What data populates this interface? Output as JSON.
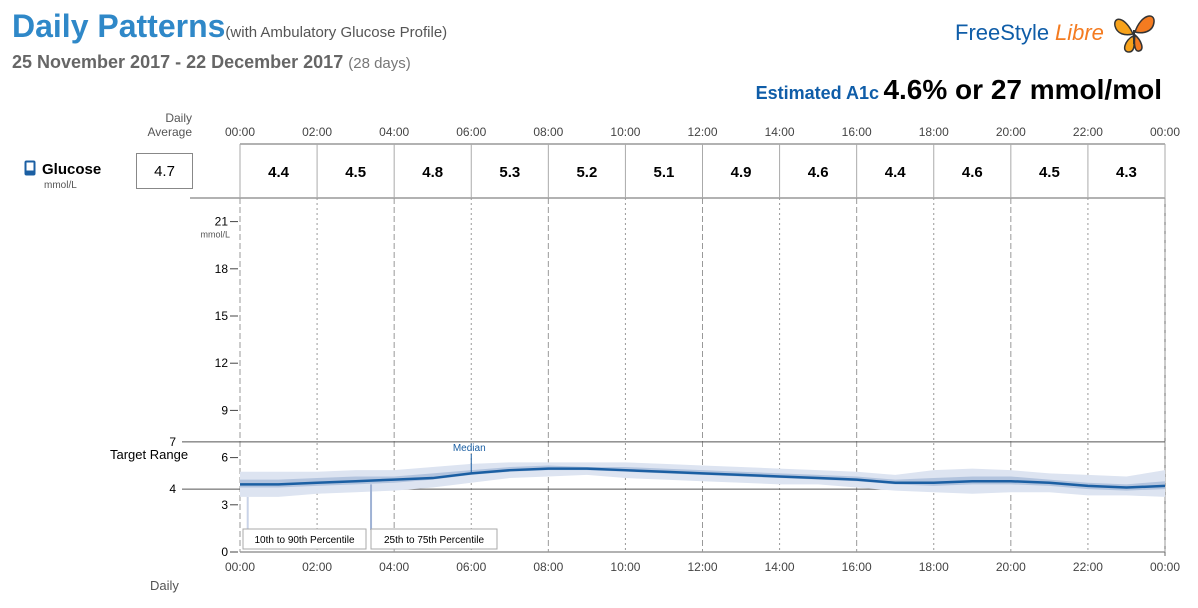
{
  "header": {
    "title": "Daily Patterns",
    "title_suffix": "(with Ambulatory Glucose Profile)",
    "date_range": "25 November 2017 - 22 December 2017",
    "day_count": "(28 days)",
    "logo_free": "FreeStyle",
    "logo_libre": "Libre",
    "a1c_label": "Estimated A1c",
    "a1c_value": "4.6% or 27 mmol/mol"
  },
  "summary": {
    "daily_average_label": "Daily Average",
    "glucose_label": "Glucose",
    "glucose_unit": "mmol/L",
    "daily_average_value": "4.7",
    "bottom_label": "Daily"
  },
  "target_range_label": "Target Range",
  "legend": {
    "median": "Median",
    "p10_90": "10th to 90th Percentile",
    "p25_75": "25th to 75th Percentile"
  },
  "colors": {
    "title": "#2f88c8",
    "a1c_label": "#0f5da8",
    "median_line": "#1b5fa3",
    "band_10_90": "#dde4f1",
    "band_25_75": "#b3c4de",
    "grid": "#999999"
  },
  "chart_data": {
    "type": "line",
    "time_ticks": [
      "00:00",
      "02:00",
      "04:00",
      "06:00",
      "08:00",
      "10:00",
      "12:00",
      "14:00",
      "16:00",
      "18:00",
      "20:00",
      "22:00",
      "00:00"
    ],
    "period_values": [
      "4.4",
      "4.5",
      "4.8",
      "5.3",
      "5.2",
      "5.1",
      "4.9",
      "4.6",
      "4.4",
      "4.6",
      "4.5",
      "4.3"
    ],
    "y_unit": "mmol/L",
    "y_ticks": [
      0,
      3,
      6,
      9,
      12,
      15,
      18,
      21
    ],
    "ylim": [
      0,
      22.5
    ],
    "target_range": [
      4,
      7
    ],
    "x_hours": [
      0,
      1,
      2,
      3,
      4,
      5,
      6,
      7,
      8,
      9,
      10,
      11,
      12,
      13,
      14,
      15,
      16,
      17,
      18,
      19,
      20,
      21,
      22,
      23,
      24
    ],
    "series": [
      {
        "name": "Median",
        "values": [
          4.3,
          4.3,
          4.4,
          4.5,
          4.6,
          4.7,
          5.0,
          5.2,
          5.3,
          5.3,
          5.2,
          5.1,
          5.0,
          4.9,
          4.8,
          4.7,
          4.6,
          4.4,
          4.4,
          4.5,
          4.5,
          4.4,
          4.2,
          4.1,
          4.2
        ]
      },
      {
        "name": "25th to 75th Percentile",
        "low": [
          4.1,
          4.1,
          4.2,
          4.3,
          4.4,
          4.6,
          4.9,
          5.1,
          5.2,
          5.2,
          5.1,
          5.0,
          4.9,
          4.8,
          4.7,
          4.6,
          4.5,
          4.3,
          4.2,
          4.3,
          4.3,
          4.2,
          4.0,
          3.9,
          4.0
        ],
        "high": [
          4.6,
          4.6,
          4.7,
          4.8,
          4.8,
          5.0,
          5.2,
          5.4,
          5.5,
          5.4,
          5.4,
          5.3,
          5.2,
          5.1,
          5.0,
          4.9,
          4.8,
          4.6,
          4.7,
          4.8,
          4.8,
          4.6,
          4.4,
          4.3,
          4.5
        ]
      },
      {
        "name": "10th to 90th Percentile",
        "low": [
          3.5,
          3.5,
          3.7,
          3.8,
          3.9,
          4.1,
          4.4,
          4.7,
          4.8,
          4.9,
          4.7,
          4.6,
          4.5,
          4.4,
          4.3,
          4.3,
          4.1,
          3.9,
          3.8,
          3.7,
          3.8,
          3.8,
          3.6,
          3.6,
          3.5
        ],
        "high": [
          5.1,
          5.1,
          5.1,
          5.2,
          5.2,
          5.4,
          5.6,
          5.7,
          5.7,
          5.7,
          5.7,
          5.6,
          5.5,
          5.4,
          5.3,
          5.2,
          5.1,
          4.9,
          5.2,
          5.3,
          5.2,
          5.0,
          4.9,
          4.8,
          5.2
        ]
      }
    ]
  }
}
